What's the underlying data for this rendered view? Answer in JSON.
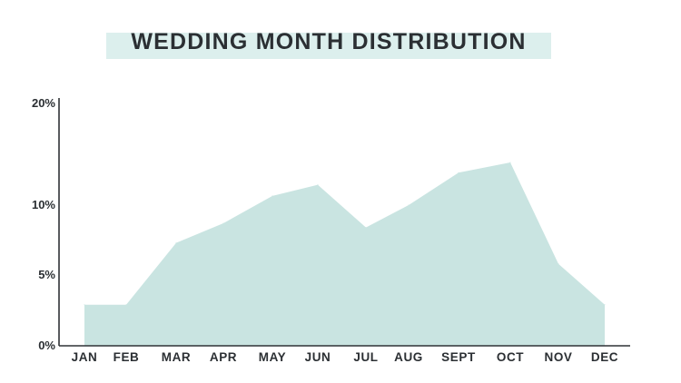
{
  "chart_data": {
    "type": "area",
    "title": "WEDDING MONTH DISTRIBUTION",
    "categories": [
      "JAN",
      "FEB",
      "MAR",
      "APR",
      "MAY",
      "JUN",
      "JUL",
      "AUG",
      "SEPT",
      "OCT",
      "NOV",
      "DEC"
    ],
    "series": [
      {
        "values": [
          2.9,
          2.9,
          7.3,
          8.7,
          10.9,
          12.0,
          8.4,
          10.0,
          13.2,
          14.2,
          5.8,
          2.9
        ]
      }
    ],
    "y_ticks": [
      {
        "value": 0,
        "label": "0%"
      },
      {
        "value": 5,
        "label": "5%"
      },
      {
        "value": 10,
        "label": "10%"
      },
      {
        "value": 20,
        "label": "20%"
      }
    ],
    "ylim": [
      0,
      20
    ],
    "grid": false,
    "legend": "none",
    "colors": {
      "area": "#c9e4e1",
      "title_highlight": "#dcefed",
      "axis": "#2f3236",
      "text": "#2b2f33"
    }
  }
}
